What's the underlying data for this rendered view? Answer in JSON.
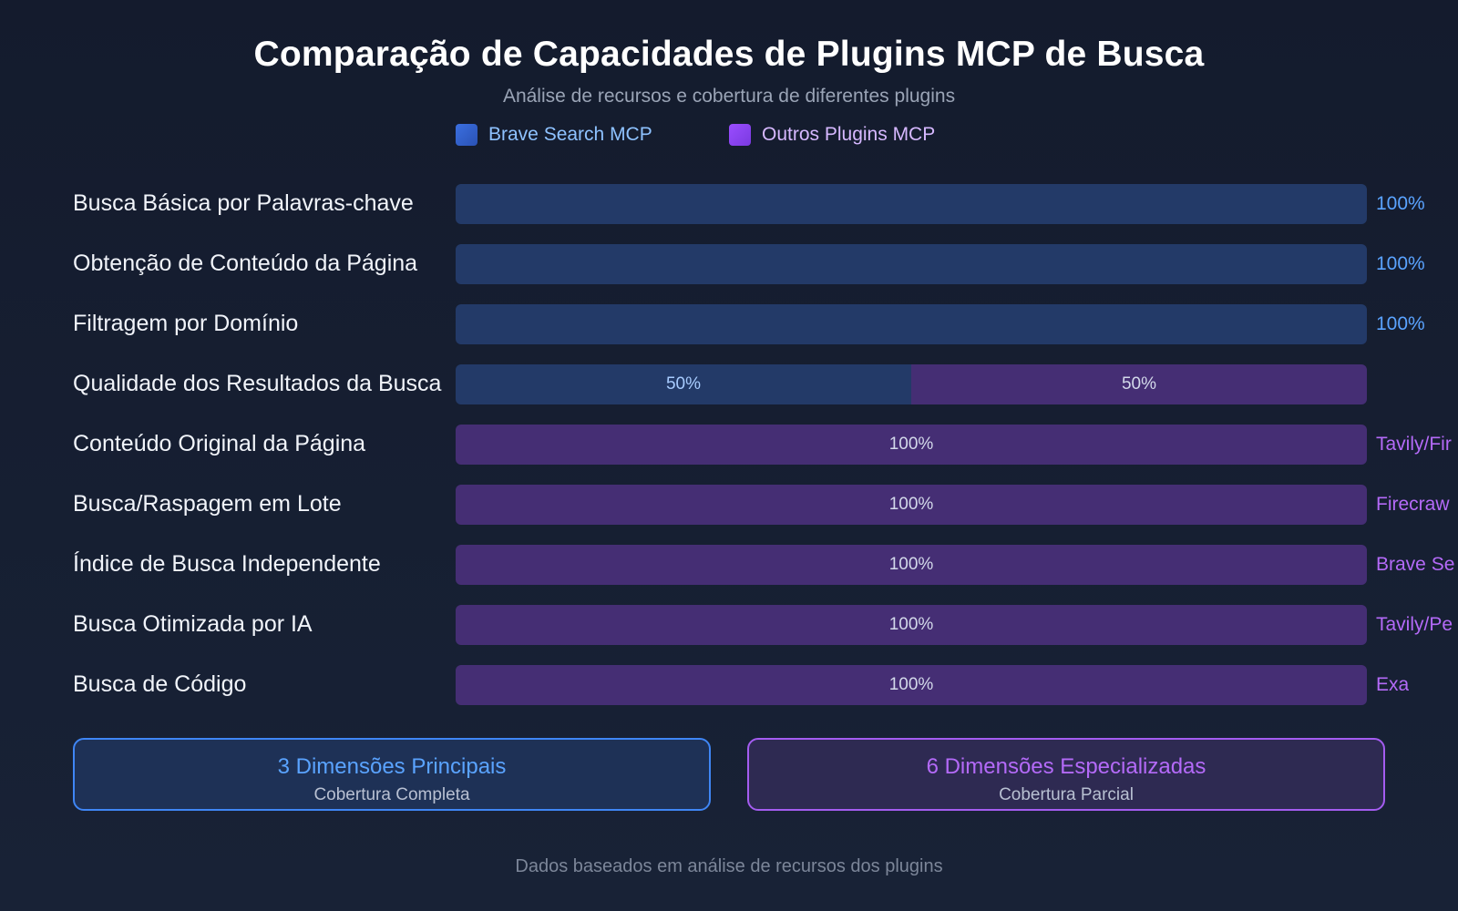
{
  "title": "Comparação de Capacidades de Plugins MCP de Busca",
  "subtitle": "Análise de recursos e cobertura de diferentes plugins",
  "legend": {
    "brave": "Brave Search MCP",
    "other": "Outros Plugins MCP"
  },
  "colors": {
    "brave_bar": "#233a68",
    "other_bar": "#452e74",
    "brave_accent": "#5aa3ff",
    "other_accent": "#b46af8"
  },
  "chart_data": {
    "type": "bar",
    "orientation": "horizontal",
    "stacked": true,
    "title": "Comparação de Capacidades de Plugins MCP de Busca",
    "xlim": [
      0,
      100
    ],
    "series": [
      {
        "name": "Brave Search MCP",
        "key": "brave"
      },
      {
        "name": "Outros Plugins MCP",
        "key": "other"
      }
    ],
    "rows": [
      {
        "category": "Busca Básica por Palavras-chave",
        "brave": 100,
        "other": 0,
        "brave_label": "100%",
        "end_label": "100%",
        "end_series": "brave"
      },
      {
        "category": "Obtenção de Conteúdo da Página",
        "brave": 100,
        "other": 0,
        "brave_label": "100%",
        "end_label": "100%",
        "end_series": "brave"
      },
      {
        "category": "Filtragem por Domínio",
        "brave": 100,
        "other": 0,
        "brave_label": "100%",
        "end_label": "100%",
        "end_series": "brave"
      },
      {
        "category": "Qualidade dos Resultados da Busca",
        "brave": 50,
        "other": 50,
        "brave_label": "50%",
        "other_label": "50%",
        "end_label": "",
        "end_series": ""
      },
      {
        "category": "Conteúdo Original da Página",
        "brave": 0,
        "other": 100,
        "other_label": "100%",
        "end_label": "Tavily/Fir",
        "end_series": "other"
      },
      {
        "category": "Busca/Raspagem em Lote",
        "brave": 0,
        "other": 100,
        "other_label": "100%",
        "end_label": "Firecraw",
        "end_series": "other"
      },
      {
        "category": "Índice de Busca Independente",
        "brave": 0,
        "other": 100,
        "other_label": "100%",
        "end_label": "Brave Se",
        "end_series": "other"
      },
      {
        "category": "Busca Otimizada por IA",
        "brave": 0,
        "other": 100,
        "other_label": "100%",
        "end_label": "Tavily/Pe",
        "end_series": "other"
      },
      {
        "category": "Busca de Código",
        "brave": 0,
        "other": 100,
        "other_label": "100%",
        "end_label": "Exa",
        "end_series": "other"
      }
    ]
  },
  "cards": {
    "core": {
      "title": "3 Dimensões Principais",
      "subtitle": "Cobertura Completa"
    },
    "specialized": {
      "title": "6 Dimensões Especializadas",
      "subtitle": "Cobertura Parcial"
    }
  },
  "footer": "Dados baseados em análise de recursos dos plugins"
}
